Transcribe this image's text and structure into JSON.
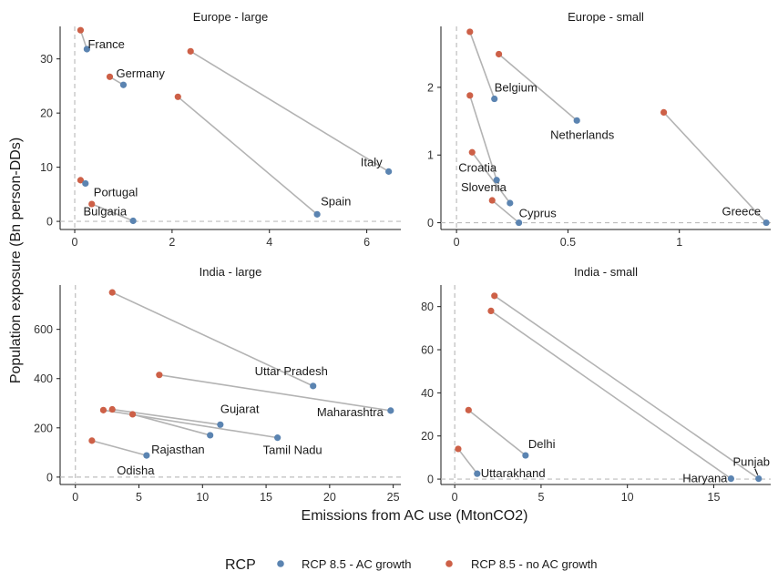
{
  "chart_data": {
    "type": "scatter",
    "xlabel": "Emissions from AC use (MtonCO2)",
    "ylabel": "Population exposure (Bn person-DDs)",
    "legend": {
      "title": "RCP",
      "position": "bottom",
      "entries": [
        {
          "name": "RCP 8.5 - AC growth",
          "color": "#5b84b1"
        },
        {
          "name": "RCP 8.5 - no AC growth",
          "color": "#cd6047"
        }
      ]
    },
    "colors": {
      "ac_growth": "#5b84b1",
      "no_ac_growth": "#cd6047",
      "segment": "#b3b3b3",
      "reference": "#bdbdbd"
    },
    "grid": false,
    "panels": [
      {
        "title": "Europe - large",
        "xlim": [
          -0.3,
          6.7
        ],
        "ylim": [
          -1.5,
          36
        ],
        "xticks": [
          0,
          2,
          4,
          6
        ],
        "yticks": [
          0,
          10,
          20,
          30
        ],
        "regions": [
          {
            "label": "France",
            "ac_growth": [
              0.25,
              31.8
            ],
            "no_ac_growth": [
              0.12,
              35.3
            ]
          },
          {
            "label": "Germany",
            "ac_growth": [
              1.0,
              25.2
            ],
            "no_ac_growth": [
              0.72,
              26.7
            ]
          },
          {
            "label": "Italy",
            "ac_growth": [
              6.45,
              9.2
            ],
            "no_ac_growth": [
              2.38,
              31.4
            ]
          },
          {
            "label": "Spain",
            "ac_growth": [
              4.98,
              1.3
            ],
            "no_ac_growth": [
              2.12,
              23.0
            ]
          },
          {
            "label": "Portugal",
            "ac_growth": [
              0.22,
              7.0
            ],
            "no_ac_growth": [
              0.12,
              7.6
            ]
          },
          {
            "label": "Bulgaria",
            "ac_growth": [
              1.2,
              0.1
            ],
            "no_ac_growth": [
              0.35,
              3.2
            ]
          }
        ]
      },
      {
        "title": "Europe - small",
        "xlim": [
          -0.07,
          1.41
        ],
        "ylim": [
          -0.1,
          2.9
        ],
        "xticks": [
          0.0,
          0.5,
          1.0
        ],
        "yticks": [
          0,
          1,
          2
        ],
        "regions": [
          {
            "label": "Belgium",
            "ac_growth": [
              0.17,
              1.83
            ],
            "no_ac_growth": [
              0.06,
              2.82
            ]
          },
          {
            "label": "Netherlands",
            "ac_growth": [
              0.54,
              1.51
            ],
            "no_ac_growth": [
              0.19,
              2.49
            ]
          },
          {
            "label": "Greece",
            "ac_growth": [
              1.39,
              0.0
            ],
            "no_ac_growth": [
              0.93,
              1.63
            ]
          },
          {
            "label": "Croatia",
            "ac_growth": [
              0.18,
              0.63
            ],
            "no_ac_growth": [
              0.06,
              1.88
            ]
          },
          {
            "label": "Slovenia",
            "ac_growth": [
              0.24,
              0.29
            ],
            "no_ac_growth": [
              0.07,
              1.04
            ]
          },
          {
            "label": "Cyprus",
            "ac_growth": [
              0.28,
              0.0
            ],
            "no_ac_growth": [
              0.16,
              0.33
            ]
          }
        ]
      },
      {
        "title": "India - large",
        "xlim": [
          -1.2,
          25.6
        ],
        "ylim": [
          -30,
          780
        ],
        "xticks": [
          0,
          5,
          10,
          15,
          20,
          25
        ],
        "yticks": [
          0,
          200,
          400,
          600
        ],
        "regions": [
          {
            "label": "Uttar Pradesh",
            "ac_growth": [
              18.7,
              370
            ],
            "no_ac_growth": [
              2.9,
              750
            ]
          },
          {
            "label": "Maharashtra",
            "ac_growth": [
              24.8,
              270
            ],
            "no_ac_growth": [
              6.6,
              415
            ]
          },
          {
            "label": "Gujarat",
            "ac_growth": [
              11.4,
              213
            ],
            "no_ac_growth": [
              2.9,
              275
            ]
          },
          {
            "label": "Tamil Nadu",
            "ac_growth": [
              15.9,
              160
            ],
            "no_ac_growth": [
              2.2,
              272
            ]
          },
          {
            "label": "Rajasthan",
            "ac_growth": [
              10.6,
              170
            ],
            "no_ac_growth": [
              4.5,
              255
            ]
          },
          {
            "label": "Odisha",
            "ac_growth": [
              5.6,
              88
            ],
            "no_ac_growth": [
              1.3,
              148
            ]
          }
        ]
      },
      {
        "title": "India - small",
        "xlim": [
          -0.8,
          18.3
        ],
        "ylim": [
          -2.5,
          90
        ],
        "xticks": [
          0,
          5,
          10,
          15
        ],
        "yticks": [
          0,
          20,
          40,
          60,
          80
        ],
        "regions": [
          {
            "label": "Punjab",
            "ac_growth": [
              17.6,
              0.2
            ],
            "no_ac_growth": [
              2.3,
              85
            ]
          },
          {
            "label": "Haryana",
            "ac_growth": [
              16.0,
              0.2
            ],
            "no_ac_growth": [
              2.1,
              78
            ]
          },
          {
            "label": "Delhi",
            "ac_growth": [
              4.1,
              11
            ],
            "no_ac_growth": [
              0.8,
              32
            ]
          },
          {
            "label": "Uttarakhand",
            "ac_growth": [
              1.3,
              2.5
            ],
            "no_ac_growth": [
              0.2,
              14
            ]
          }
        ]
      }
    ]
  }
}
